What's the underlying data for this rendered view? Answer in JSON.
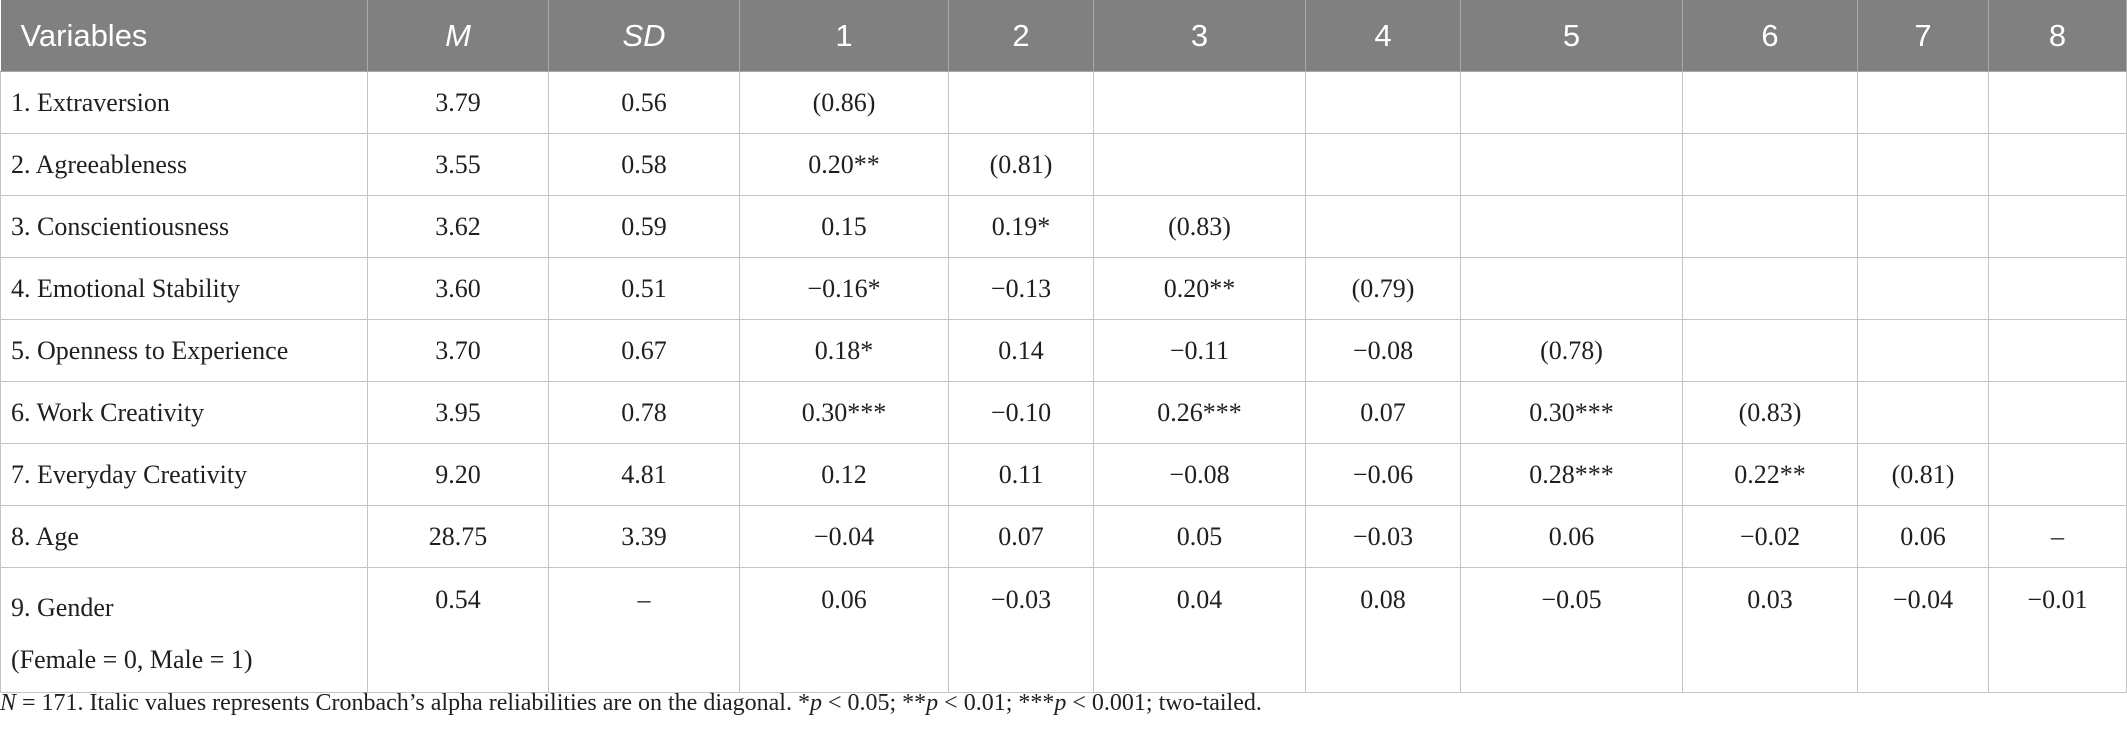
{
  "table": {
    "headers": [
      "Variables",
      "M",
      "SD",
      "1",
      "2",
      "3",
      "4",
      "5",
      "6",
      "7",
      "8"
    ],
    "rows": [
      {
        "label": "1. Extraversion",
        "label2": "",
        "m": "3.79",
        "sd": "0.56",
        "cells": [
          "(0.86)",
          "",
          "",
          "",
          "",
          "",
          "",
          ""
        ]
      },
      {
        "label": "2. Agreeableness",
        "label2": "",
        "m": "3.55",
        "sd": "0.58",
        "cells": [
          "0.20**",
          "(0.81)",
          "",
          "",
          "",
          "",
          "",
          ""
        ]
      },
      {
        "label": "3. Conscientiousness",
        "label2": "",
        "m": "3.62",
        "sd": "0.59",
        "cells": [
          "0.15",
          "0.19*",
          "(0.83)",
          "",
          "",
          "",
          "",
          ""
        ]
      },
      {
        "label": "4. Emotional Stability",
        "label2": "",
        "m": "3.60",
        "sd": "0.51",
        "cells": [
          "−0.16*",
          "−0.13",
          "0.20**",
          "(0.79)",
          "",
          "",
          "",
          ""
        ]
      },
      {
        "label": "5. Openness to Experience",
        "label2": "",
        "m": "3.70",
        "sd": "0.67",
        "cells": [
          "0.18*",
          "0.14",
          "−0.11",
          "−0.08",
          "(0.78)",
          "",
          "",
          ""
        ]
      },
      {
        "label": "6. Work Creativity",
        "label2": "",
        "m": "3.95",
        "sd": "0.78",
        "cells": [
          "0.30***",
          "−0.10",
          "0.26***",
          "0.07",
          "0.30***",
          "(0.83)",
          "",
          ""
        ]
      },
      {
        "label": "7. Everyday Creativity",
        "label2": "",
        "m": "9.20",
        "sd": "4.81",
        "cells": [
          "0.12",
          "0.11",
          "−0.08",
          "−0.06",
          "0.28***",
          "0.22**",
          "(0.81)",
          ""
        ]
      },
      {
        "label": "8. Age",
        "label2": "",
        "m": "28.75",
        "sd": "3.39",
        "cells": [
          "−0.04",
          "0.07",
          "0.05",
          "−0.03",
          "0.06",
          "−0.02",
          "0.06",
          "–"
        ]
      },
      {
        "label": "9. Gender",
        "label2": "(Female = 0, Male = 1)",
        "m": "0.54",
        "sd": "–",
        "cells": [
          "0.06",
          "−0.03",
          "0.04",
          "0.08",
          "−0.05",
          "0.03",
          "−0.04",
          "−0.01"
        ]
      }
    ]
  },
  "note": {
    "n_symbol": "N",
    "n_rest": " = 171. Italic values represents Cronbach’s alpha reliabilities are on the diagonal. *",
    "p1": "p",
    "t1": " < 0.05; **",
    "p2": "p",
    "t2": " < 0.01; ***",
    "p3": "p",
    "t3": " < 0.001; two-tailed."
  },
  "colors": {
    "header_bg": "#808080",
    "header_text": "#ffffff",
    "grid": "#c4c4c4"
  }
}
